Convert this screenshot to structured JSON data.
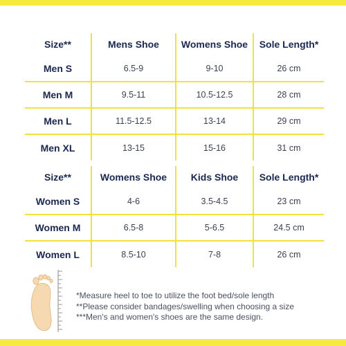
{
  "men_table": {
    "headers": [
      "Size**",
      "Mens Shoe",
      "Womens Shoe",
      "Sole Length*"
    ],
    "rows": [
      [
        "Men S",
        "6.5-9",
        "9-10",
        "26 cm"
      ],
      [
        "Men M",
        "9.5-11",
        "10.5-12.5",
        "28 cm"
      ],
      [
        "Men L",
        "11.5-12.5",
        "13-14",
        "29 cm"
      ],
      [
        "Men XL",
        "13-15",
        "15-16",
        "31 cm"
      ]
    ]
  },
  "women_table": {
    "headers": [
      "Size**",
      "Womens Shoe",
      "Kids Shoe",
      "Sole Length*"
    ],
    "rows": [
      [
        "Women S",
        "4-6",
        "3.5-4.5",
        "23 cm"
      ],
      [
        "Women M",
        "6.5-8",
        "5-6.5",
        "24.5 cm"
      ],
      [
        "Women L",
        "8.5-10",
        "7-8",
        "26 cm"
      ]
    ]
  },
  "notes": [
    "*Measure heel to toe to utilize the foot bed/sole length",
    "**Please consider bandages/swelling when choosing a size",
    "***Men's and women's shoes are the same design."
  ],
  "colors": {
    "accent_yellow": "#f7ea3f",
    "table_line": "#f2e13a",
    "text_navy": "#1a2750",
    "foot_skin": "#f6d9b0",
    "ruler_gray": "#9a9a9a"
  },
  "illustration": {
    "icon": "foot-with-ruler-icon"
  }
}
